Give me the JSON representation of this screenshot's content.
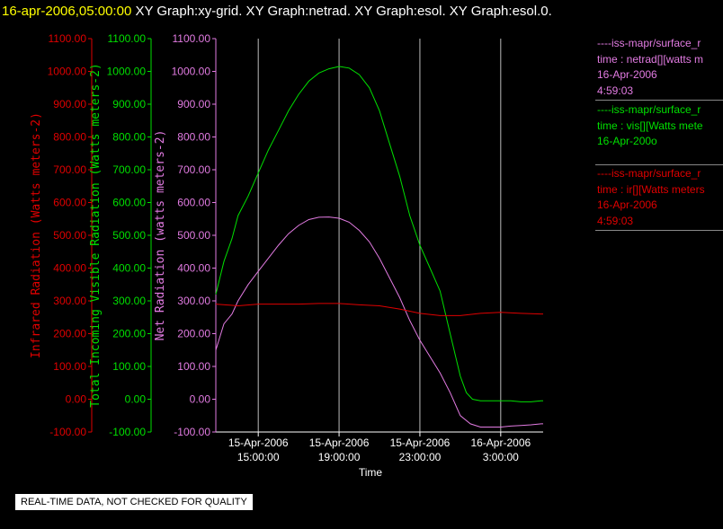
{
  "header": {
    "timestamp": "16-apr-2006,05:00:00",
    "graphs": "XY Graph:xy-grid.  XY Graph:netrad.  XY Graph:esol.  XY Graph:esol.0."
  },
  "legend": [
    {
      "name": "netrad",
      "color": "#e27be2",
      "lines": [
        "----iss-mapr/surface_r",
        "time : netrad[][watts m",
        "16-Apr-2006",
        "4:59:03"
      ]
    },
    {
      "name": "vis",
      "color": "#00e000",
      "lines": [
        "----iss-mapr/surface_r",
        "time : vis[][Watts mete",
        "16-Apr-200o"
      ]
    },
    {
      "name": "ir",
      "color": "#e00000",
      "lines": [
        "----iss-mapr/surface_r",
        "time : ir[][Watts meters",
        "16-Apr-2006",
        "4:59:03"
      ]
    }
  ],
  "disclaimer": "REAL-TIME DATA, NOT CHECKED FOR QUALITY",
  "chart_data": {
    "type": "line",
    "xlabel": "Time",
    "x_tick_labels": [
      [
        "15-Apr-2006",
        "15:00:00"
      ],
      [
        "15-Apr-2006",
        "19:00:00"
      ],
      [
        "15-Apr-2006",
        "23:00:00"
      ],
      [
        "16-Apr-2006",
        "3:00:00"
      ]
    ],
    "x_ticks_hours": [
      15,
      19,
      23,
      27
    ],
    "xlim_hours": [
      12.9,
      29.1
    ],
    "ylim": [
      -100,
      1100
    ],
    "y_ticks": [
      "1100.00",
      "1000.00",
      "900.00",
      "800.00",
      "700.00",
      "600.00",
      "500.00",
      "400.00",
      "300.00",
      "200.00",
      "100.00",
      "0.00",
      "-100.00"
    ],
    "axes": [
      {
        "label": "Infrared Radiation (Watts meters-2)",
        "color": "#e00000"
      },
      {
        "label": "Total Incoming Visible Radiation (Watts meters-2)",
        "color": "#00e000"
      },
      {
        "label": "Net Radiation (watts meters-2)",
        "color": "#e27be2"
      }
    ],
    "series": [
      {
        "name": "vis",
        "color": "#00e000",
        "x": [
          12.9,
          13.3,
          13.7,
          14.0,
          14.5,
          15.0,
          15.5,
          16.0,
          16.5,
          17.0,
          17.5,
          18.0,
          18.5,
          19.0,
          19.5,
          20.0,
          20.5,
          21.0,
          21.5,
          22.0,
          22.5,
          23.0,
          23.5,
          24.0,
          24.5,
          25.0,
          25.3,
          25.6,
          26.0,
          26.5,
          27.0,
          27.5,
          28.0,
          28.5,
          29.0,
          29.1
        ],
        "y": [
          320,
          420,
          490,
          560,
          620,
          690,
          760,
          820,
          880,
          930,
          970,
          995,
          1008,
          1015,
          1010,
          990,
          950,
          880,
          780,
          680,
          560,
          470,
          400,
          330,
          200,
          70,
          20,
          0,
          -5,
          -5,
          -5,
          -5,
          -8,
          -8,
          -5,
          -5
        ]
      },
      {
        "name": "netrad",
        "color": "#e27be2",
        "x": [
          12.9,
          13.3,
          13.7,
          14.0,
          14.5,
          15.0,
          15.5,
          16.0,
          16.5,
          17.0,
          17.5,
          18.0,
          18.5,
          19.0,
          19.5,
          20.0,
          20.5,
          21.0,
          21.5,
          22.0,
          22.5,
          23.0,
          23.5,
          24.0,
          24.5,
          25.0,
          25.5,
          26.0,
          26.5,
          27.0,
          27.5,
          28.0,
          28.5,
          29.0,
          29.1
        ],
        "y": [
          150,
          230,
          260,
          300,
          350,
          390,
          430,
          470,
          505,
          530,
          548,
          555,
          556,
          552,
          540,
          515,
          480,
          430,
          370,
          310,
          240,
          180,
          130,
          80,
          20,
          -50,
          -75,
          -85,
          -85,
          -85,
          -82,
          -80,
          -78,
          -75,
          -75
        ]
      },
      {
        "name": "ir",
        "color": "#e00000",
        "x": [
          12.9,
          14.0,
          15.0,
          16.0,
          17.0,
          18.0,
          19.0,
          20.0,
          21.0,
          22.0,
          23.0,
          24.0,
          25.0,
          26.0,
          27.0,
          28.0,
          29.0,
          29.1
        ],
        "y": [
          290,
          285,
          290,
          290,
          290,
          292,
          292,
          288,
          285,
          275,
          262,
          255,
          255,
          262,
          265,
          262,
          260,
          260
        ]
      }
    ]
  }
}
